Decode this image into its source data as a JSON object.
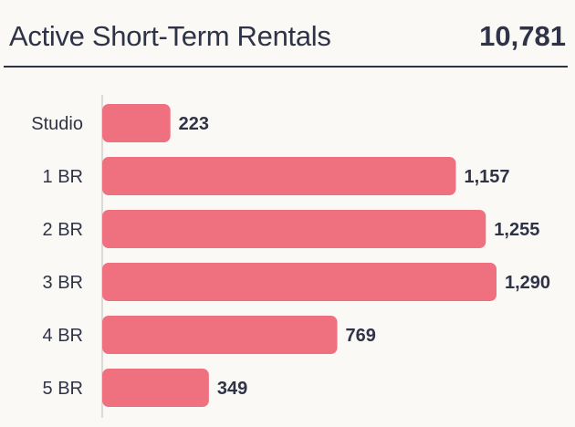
{
  "header": {
    "title": "Active Short-Term Rentals",
    "total": "10,781"
  },
  "colors": {
    "bar": "#ef707f",
    "text": "#2e3347",
    "axis": "#dcdad6",
    "background": "#fbf9f5"
  },
  "chart_data": {
    "type": "bar",
    "orientation": "horizontal",
    "categories": [
      "Studio",
      "1 BR",
      "2 BR",
      "3 BR",
      "4 BR",
      "5 BR"
    ],
    "values": [
      223,
      1157,
      1255,
      1290,
      769,
      349
    ],
    "value_labels": [
      "223",
      "1,157",
      "1,255",
      "1,290",
      "769",
      "349"
    ],
    "xlim": [
      0,
      1290
    ],
    "grid": false,
    "legend": "none"
  }
}
